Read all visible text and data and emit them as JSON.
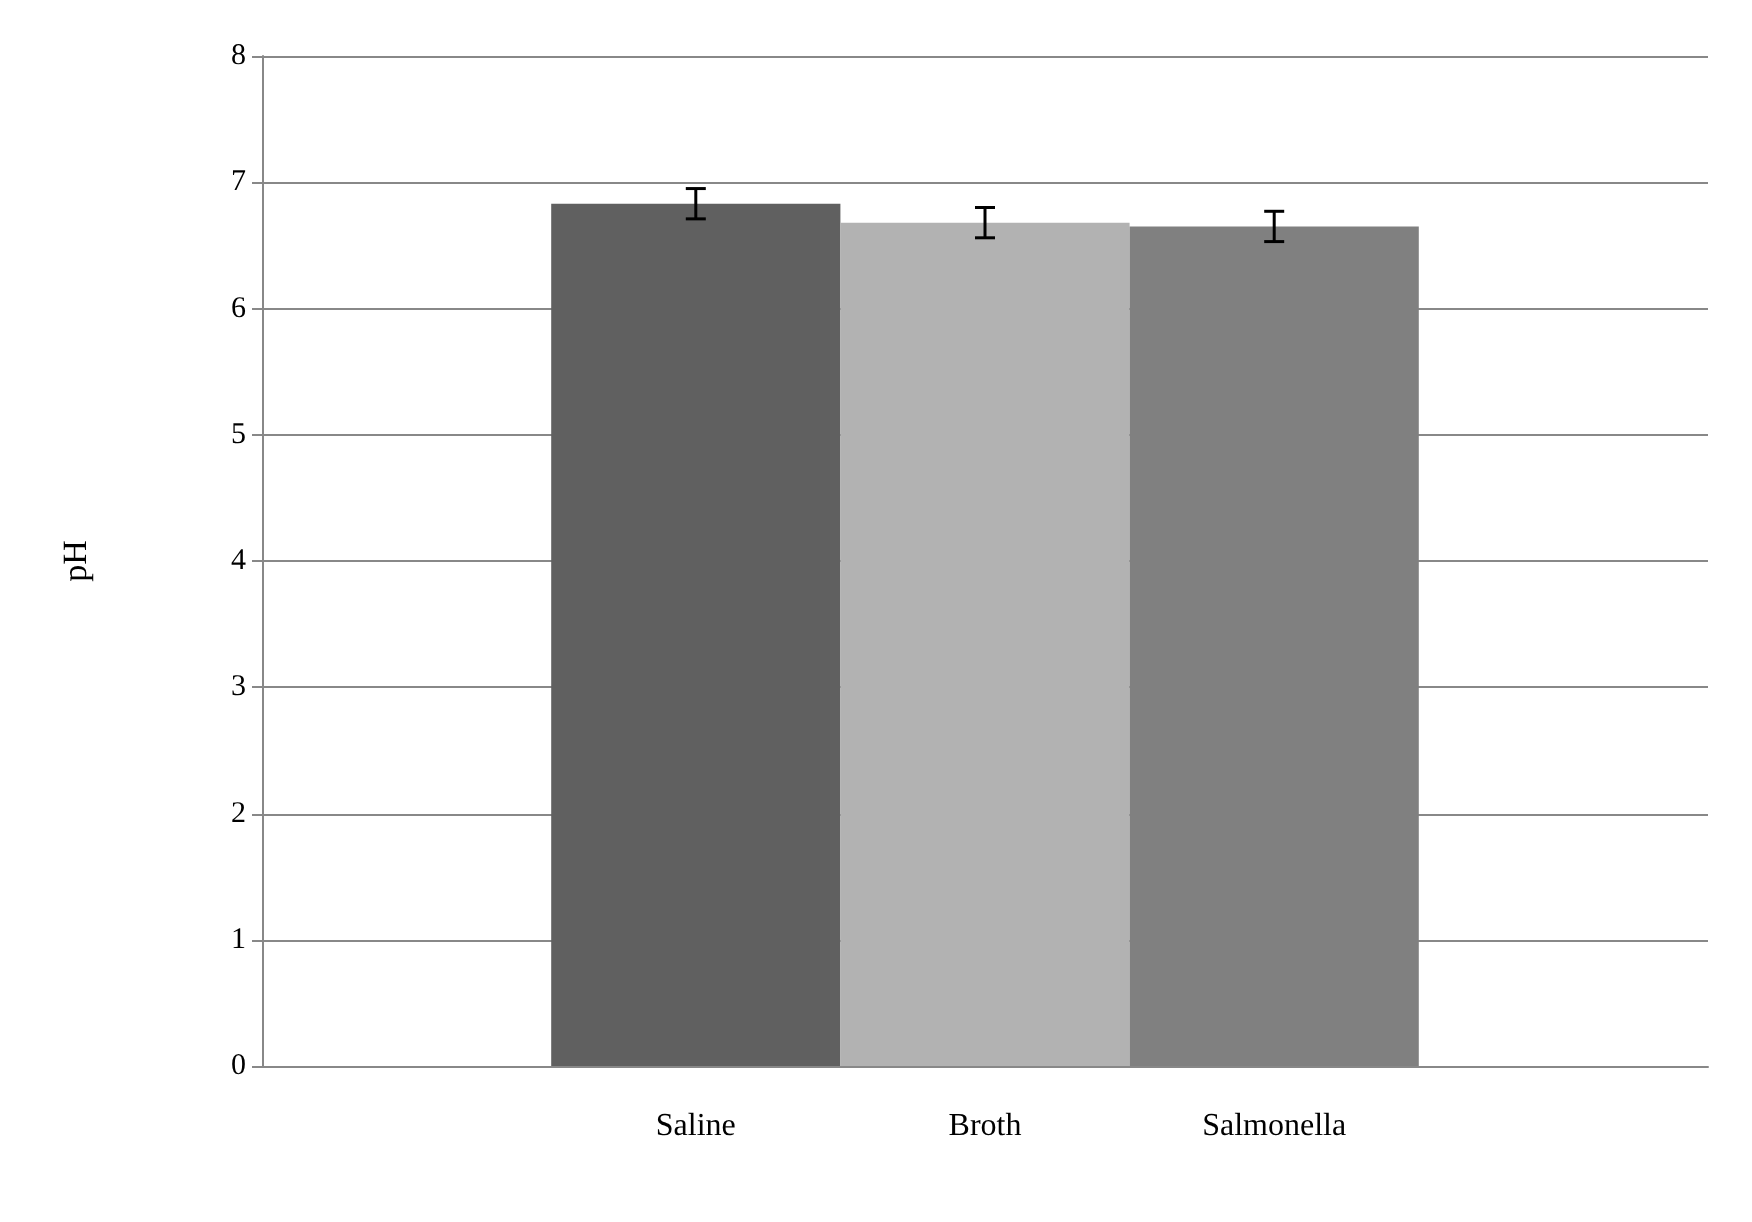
{
  "chart_data": {
    "type": "bar",
    "ylabel": "pH",
    "categories": [
      "Saline",
      "Broth",
      "Salmonella"
    ],
    "values": [
      6.83,
      6.68,
      6.65
    ],
    "colors": [
      "#606060",
      "#b2b2b2",
      "#808080"
    ],
    "errors": [
      0.12,
      0.12,
      0.12
    ],
    "ylim": [
      0,
      8
    ],
    "yticks": [
      0,
      1,
      2,
      3,
      4,
      5,
      6,
      7,
      8
    ],
    "grid": "y"
  }
}
